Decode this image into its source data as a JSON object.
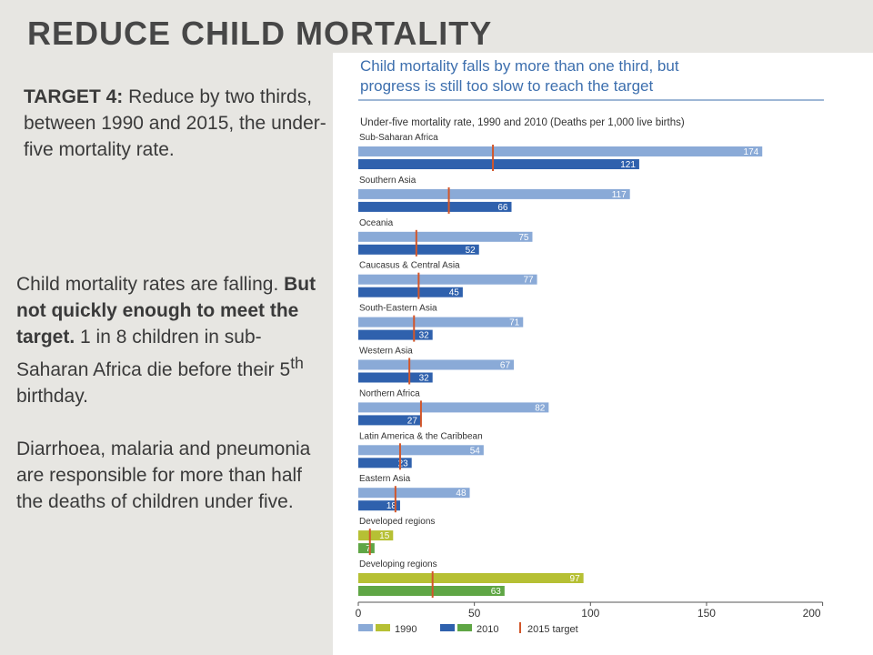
{
  "slide": {
    "title": "REDUCE CHILD MORTALITY",
    "target_label": "TARGET 4:",
    "target_text": "Reduce by two thirds, between 1990 and 2015, the under-five mortality rate.",
    "para1_a": "Child mortality rates are falling. ",
    "para1_bold": "But not quickly enough to meet the target.",
    "para1_b": " 1 in 8 children in sub-Saharan Africa die before their 5",
    "para1_sup": "th",
    "para1_c": " birthday.",
    "para2": "Diarrhoea, malaria and pneumonia are responsible for more than half the deaths of children under five."
  },
  "colors": {
    "bar_1990": "#8aaad7",
    "bar_2010": "#2f61ad",
    "dev_1990": "#b6c034",
    "dev_2010": "#5fa645",
    "target": "#d2562a",
    "title_color": "#3d6fae"
  },
  "chart_data": {
    "type": "bar",
    "orientation": "horizontal",
    "title": "Child mortality falls by more than one third, but progress is still too slow to reach the target",
    "subtitle": "Under-five mortality rate, 1990 and 2010 (Deaths per 1,000 live births)",
    "categories": [
      "Sub-Saharan Africa",
      "Southern Asia",
      "Oceania",
      "Caucasus & Central Asia",
      "South-Eastern Asia",
      "Western Asia",
      "Northern Africa",
      "Latin America & the Caribbean",
      "Eastern Asia",
      "Developed regions",
      "Developing regions"
    ],
    "series": [
      {
        "name": "1990",
        "values": [
          174,
          117,
          75,
          77,
          71,
          67,
          82,
          54,
          48,
          15,
          97
        ]
      },
      {
        "name": "2010",
        "values": [
          121,
          66,
          52,
          45,
          32,
          32,
          27,
          23,
          18,
          7,
          63
        ]
      },
      {
        "name": "2015 target",
        "values": [
          58,
          39,
          25,
          26,
          24,
          22,
          27,
          18,
          16,
          5,
          32
        ]
      }
    ],
    "xlim": [
      0,
      200
    ],
    "xticks": [
      0,
      50,
      100,
      150,
      200
    ],
    "legend": [
      "1990",
      "2010",
      "2015 target"
    ],
    "legend_position": "bottom"
  }
}
